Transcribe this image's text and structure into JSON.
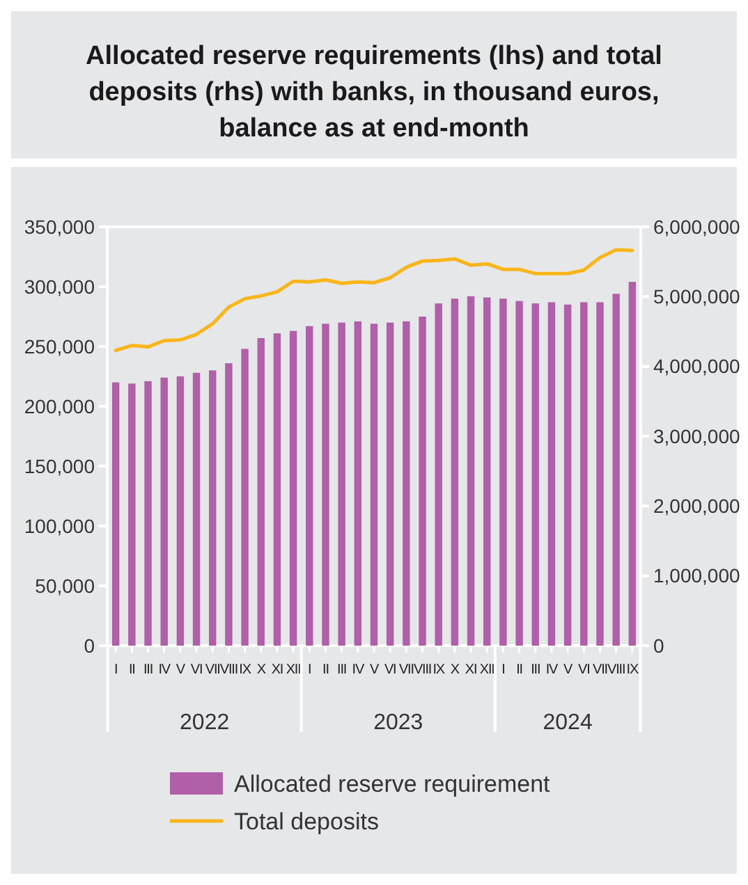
{
  "chart_data": {
    "type": "bar",
    "title": "Allocated reserve requirements (lhs) and total deposits (rhs) with banks, in thousand euros, balance as at end-month",
    "categories": [
      "I",
      "II",
      "III",
      "IV",
      "V",
      "VI",
      "VII",
      "VIII",
      "IX",
      "X",
      "XI",
      "XII",
      "I",
      "II",
      "III",
      "IV",
      "V",
      "VI",
      "VII",
      "VIII",
      "IX",
      "X",
      "XI",
      "XII",
      "I",
      "II",
      "III",
      "IV",
      "V",
      "VI",
      "VII",
      "VIII",
      "IX"
    ],
    "annotations": [
      "2022",
      "2023",
      "2024"
    ],
    "series": [
      {
        "name": "Allocated reserve requirement",
        "color": "#b05fa8",
        "values": [
          220000,
          219000,
          221000,
          224000,
          225000,
          228000,
          230000,
          236000,
          248000,
          257000,
          261000,
          263000,
          267000,
          269000,
          270000,
          271000,
          269000,
          270000,
          271000,
          275000,
          286000,
          290000,
          292000,
          291000,
          290000,
          288000,
          286000,
          287000,
          285000,
          287000,
          287000,
          294000,
          304000
        ]
      },
      {
        "name": "Total deposits",
        "type": "line",
        "axis": "y2",
        "color": "#f9b51a",
        "values": [
          4230000,
          4300000,
          4280000,
          4370000,
          4380000,
          4460000,
          4610000,
          4850000,
          4970000,
          5010000,
          5070000,
          5220000,
          5210000,
          5240000,
          5190000,
          5210000,
          5200000,
          5270000,
          5420000,
          5510000,
          5520000,
          5540000,
          5450000,
          5470000,
          5390000,
          5390000,
          5330000,
          5330000,
          5330000,
          5380000,
          5560000,
          5670000,
          5660000
        ]
      }
    ],
    "ylim": [
      0,
      350000
    ],
    "yticks": [
      0,
      {
        "value": 50000,
        "label": "50,000"
      },
      {
        "value": 100000,
        "label": "100,000"
      },
      {
        "value": 150000,
        "label": "150,000"
      },
      {
        "value": 200000,
        "label": "200,000"
      },
      {
        "value": 250000,
        "label": "250,000"
      },
      {
        "value": 300000,
        "label": "300,000"
      },
      {
        "value": 350000,
        "label": "350,000"
      }
    ],
    "y2lim": [
      0,
      6000000
    ],
    "y2ticks": [
      0,
      {
        "value": 1000000,
        "label": "1,000,000"
      },
      {
        "value": 2000000,
        "label": "2,000,000"
      },
      {
        "value": 3000000,
        "label": "3,000,000"
      },
      {
        "value": 4000000,
        "label": "4,000,000"
      },
      {
        "value": 5000000,
        "label": "5,000,000"
      },
      {
        "value": 6000000,
        "label": "6,000,000"
      }
    ],
    "grid": false,
    "legend": "bottom"
  }
}
